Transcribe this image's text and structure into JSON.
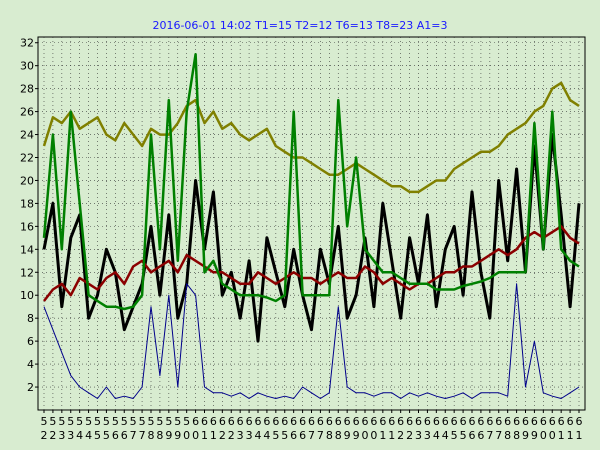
{
  "chart_data": {
    "type": "line",
    "title": "2016-06-01 14:02  T1=15 T2=12 T6=13 T8=23 A1=3",
    "xlabel": "",
    "ylabel": "",
    "ylim": [
      0,
      32.5
    ],
    "y_ticks": [
      2,
      4,
      6,
      8,
      10,
      12,
      14,
      16,
      18,
      20,
      22,
      24,
      26,
      28,
      30,
      32
    ],
    "grid": true,
    "legend": "none",
    "x_ticks": [
      [
        "5",
        "2"
      ],
      [
        "5",
        "2"
      ],
      [
        "5",
        "3"
      ],
      [
        "5",
        "3"
      ],
      [
        "5",
        "4"
      ],
      [
        "5",
        "4"
      ],
      [
        "5",
        "5"
      ],
      [
        "5",
        "5"
      ],
      [
        "5",
        "6"
      ],
      [
        "5",
        "6"
      ],
      [
        "5",
        "7"
      ],
      [
        "5",
        "7"
      ],
      [
        "5",
        "8"
      ],
      [
        "5",
        "8"
      ],
      [
        "5",
        "9"
      ],
      [
        "5",
        "9"
      ],
      [
        "5",
        "10"
      ],
      [
        "6",
        "10"
      ],
      [
        "6",
        "11"
      ],
      [
        "6",
        "11"
      ],
      [
        "6",
        "12"
      ],
      [
        "6",
        "12"
      ],
      [
        "6",
        "13"
      ],
      [
        "6",
        "13"
      ],
      [
        "6",
        "14"
      ],
      [
        "6",
        "14"
      ],
      [
        "6",
        "15"
      ],
      [
        "6",
        "15"
      ],
      [
        "6",
        "16"
      ],
      [
        "6",
        "16"
      ],
      [
        "6",
        "17"
      ],
      [
        "6",
        "17"
      ],
      [
        "6",
        "18"
      ],
      [
        "6",
        "18"
      ],
      [
        "6",
        "19"
      ],
      [
        "6",
        "19"
      ],
      [
        "6",
        "20"
      ],
      [
        "6",
        "20"
      ],
      [
        "6",
        "21"
      ],
      [
        "6",
        "21"
      ],
      [
        "6",
        "22"
      ],
      [
        "6",
        "22"
      ],
      [
        "6",
        "23"
      ],
      [
        "6",
        "23"
      ],
      [
        "6",
        "24"
      ],
      [
        "6",
        "24"
      ],
      [
        "6",
        "25"
      ],
      [
        "6",
        "25"
      ],
      [
        "6",
        "26"
      ],
      [
        "6",
        "26"
      ],
      [
        "6",
        "27"
      ],
      [
        "6",
        "27"
      ],
      [
        "6",
        "28"
      ],
      [
        "6",
        "28"
      ],
      [
        "6",
        "29"
      ],
      [
        "6",
        "29"
      ],
      [
        "6",
        "30"
      ],
      [
        "6",
        "30"
      ],
      [
        "6",
        "31"
      ],
      [
        "6",
        "31"
      ],
      [
        "6",
        "1"
      ]
    ],
    "series": [
      {
        "color": "#808000",
        "values": [
          23,
          25.5,
          25,
          26,
          24.5,
          25,
          25.5,
          24,
          23.5,
          25,
          24,
          23,
          24.5,
          24,
          24,
          25,
          26.5,
          27,
          25,
          26,
          24.5,
          25,
          24,
          23.5,
          24,
          24.5,
          23,
          22.5,
          22,
          22,
          21.5,
          21,
          20.5,
          20.5,
          21,
          21.5,
          21,
          20.5,
          20,
          19.5,
          19.5,
          19,
          19,
          19.5,
          20,
          20,
          21,
          21.5,
          22,
          22.5,
          22.5,
          23,
          24,
          24.5,
          25,
          26,
          26.5,
          28,
          28.5,
          27,
          26.5
        ]
      },
      {
        "color": "#000000",
        "values": [
          14,
          18,
          9,
          15,
          17,
          8,
          10,
          14,
          12,
          7,
          9,
          11,
          16,
          10,
          17,
          8,
          11,
          20,
          14,
          19,
          10,
          12,
          8,
          13,
          6,
          15,
          12,
          9,
          14,
          10,
          7,
          14,
          11,
          16,
          8,
          10,
          15,
          9,
          18,
          13,
          8,
          15,
          11,
          17,
          9,
          14,
          16,
          10,
          19,
          12,
          8,
          20,
          13,
          21,
          12,
          23,
          14,
          24,
          17,
          9,
          18
        ]
      },
      {
        "color": "#8b0000",
        "values": [
          9.5,
          10.5,
          11,
          10,
          11.5,
          11,
          10.5,
          11.5,
          12,
          11,
          12.5,
          13,
          12,
          12.5,
          13,
          12,
          13.5,
          13,
          12.5,
          12,
          12,
          11.5,
          11,
          11,
          12,
          11.5,
          11,
          11.5,
          12,
          11.5,
          11.5,
          11,
          11.5,
          12,
          11.5,
          11.5,
          12.5,
          12,
          11,
          11.5,
          11,
          10.5,
          11,
          11,
          11.5,
          12,
          12,
          12.5,
          12.5,
          13,
          13.5,
          14,
          13.5,
          14,
          15,
          15.5,
          15,
          15.5,
          16,
          15,
          14.5
        ]
      },
      {
        "color": "#008000",
        "values": [
          15,
          24,
          14,
          26,
          18,
          10,
          9.5,
          9,
          9,
          8.8,
          9,
          10,
          24,
          14,
          27,
          13,
          26,
          31,
          12,
          13,
          11,
          10.5,
          10,
          10,
          10,
          9.8,
          9.5,
          10,
          26,
          10,
          10,
          10,
          10,
          27,
          16,
          22,
          14,
          13,
          12,
          12,
          11.5,
          11,
          11,
          11,
          10.5,
          10.5,
          10.5,
          10.8,
          11,
          11.2,
          11.5,
          12,
          12,
          12,
          12,
          25,
          14,
          26,
          14,
          13,
          12.5
        ]
      },
      {
        "color": "#00008b",
        "values": [
          9,
          7,
          5,
          3,
          2,
          1.5,
          1,
          2,
          1,
          1.2,
          1,
          2,
          9,
          3,
          10,
          2,
          11,
          10,
          2,
          1.5,
          1.5,
          1.2,
          1.5,
          1,
          1.5,
          1.2,
          1,
          1.2,
          1,
          2,
          1.5,
          1,
          1.5,
          9,
          2,
          1.5,
          1.5,
          1.2,
          1.5,
          1.5,
          1,
          1.5,
          1.2,
          1.5,
          1.2,
          1,
          1.2,
          1.5,
          1,
          1.5,
          1.5,
          1.5,
          1.2,
          11,
          2,
          6,
          1.5,
          1.2,
          1,
          1.5,
          2
        ]
      }
    ]
  }
}
